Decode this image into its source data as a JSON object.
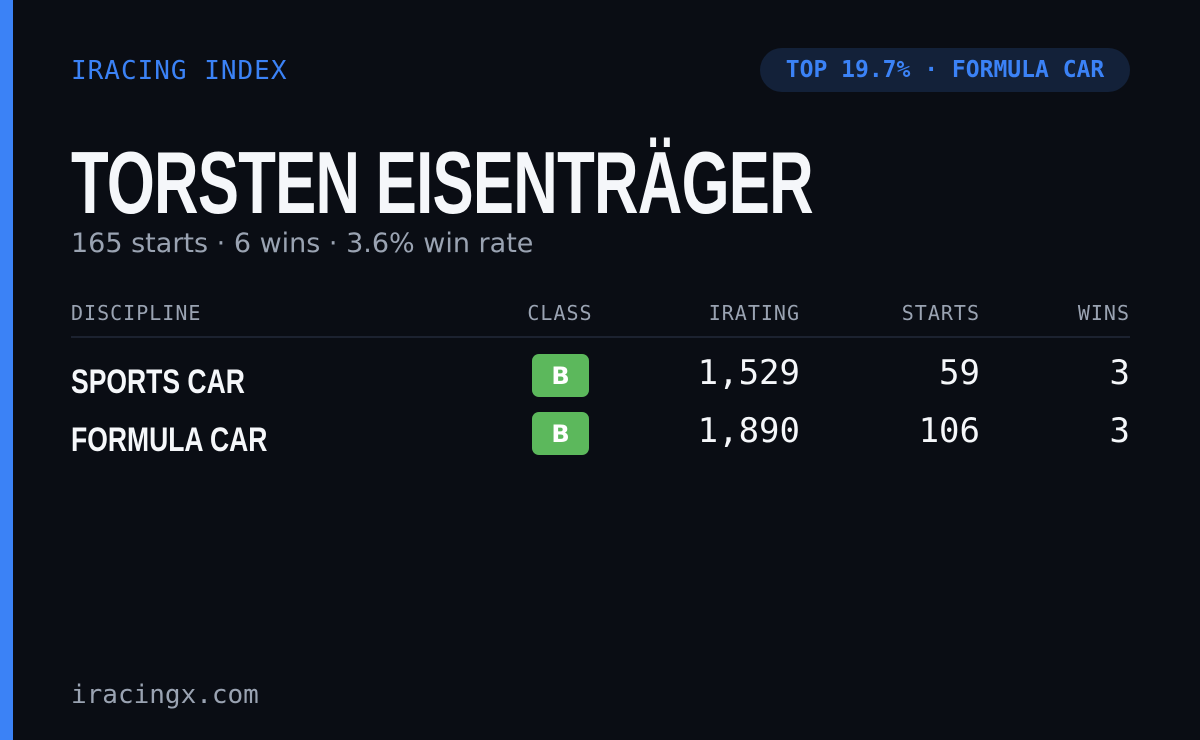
{
  "header": {
    "brand": "IRACING INDEX",
    "badge": "TOP 19.7% · FORMULA CAR"
  },
  "driver": {
    "name": "TORSTEN EISENTRÄGER",
    "summary": "165 starts · 6 wins · 3.6% win rate"
  },
  "table": {
    "columns": [
      "DISCIPLINE",
      "CLASS",
      "IRATING",
      "STARTS",
      "WINS"
    ],
    "rows": [
      [
        "SPORTS CAR",
        "B",
        "1,529",
        "59",
        "3"
      ],
      [
        "FORMULA CAR",
        "B",
        "1,890",
        "106",
        "3"
      ]
    ]
  },
  "footer": {
    "site": "iracingx.com"
  }
}
